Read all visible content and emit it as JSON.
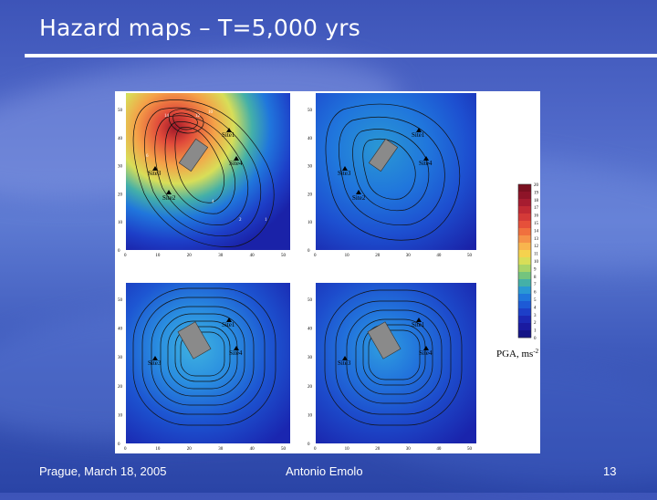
{
  "slide": {
    "title": "Hazard maps – T=5,000 yrs",
    "footer_left": "Prague, March 18, 2005",
    "footer_center": "Antonio Emolo",
    "footer_right": "13"
  },
  "figure": {
    "axis_ticks_x": [
      "0",
      "10",
      "20",
      "30",
      "40",
      "50"
    ],
    "axis_ticks_y": [
      "0",
      "10",
      "20",
      "30",
      "40",
      "50"
    ],
    "site_labels": [
      "Site1",
      "Site2",
      "Site3",
      "Site4"
    ],
    "colorbar": {
      "title": "PGA, ms",
      "title_sup": "-2",
      "ticks": [
        "20",
        "19",
        "18",
        "17",
        "16",
        "15",
        "14",
        "13",
        "12",
        "11",
        "10",
        "9",
        "8",
        "7",
        "6",
        "5",
        "4",
        "3",
        "2",
        "1",
        "0"
      ],
      "colors": [
        "#7a1020",
        "#8e1428",
        "#a61c30",
        "#c02a34",
        "#d43a38",
        "#e6503a",
        "#f0703e",
        "#f59248",
        "#f8b54e",
        "#f5d24e",
        "#d8de58",
        "#a8d468",
        "#74c47e",
        "#44b0a8",
        "#2a98d4",
        "#2076dc",
        "#1d5ad6",
        "#1d3fc8",
        "#1c28b4",
        "#1a1aa0",
        "#141486"
      ]
    }
  }
}
